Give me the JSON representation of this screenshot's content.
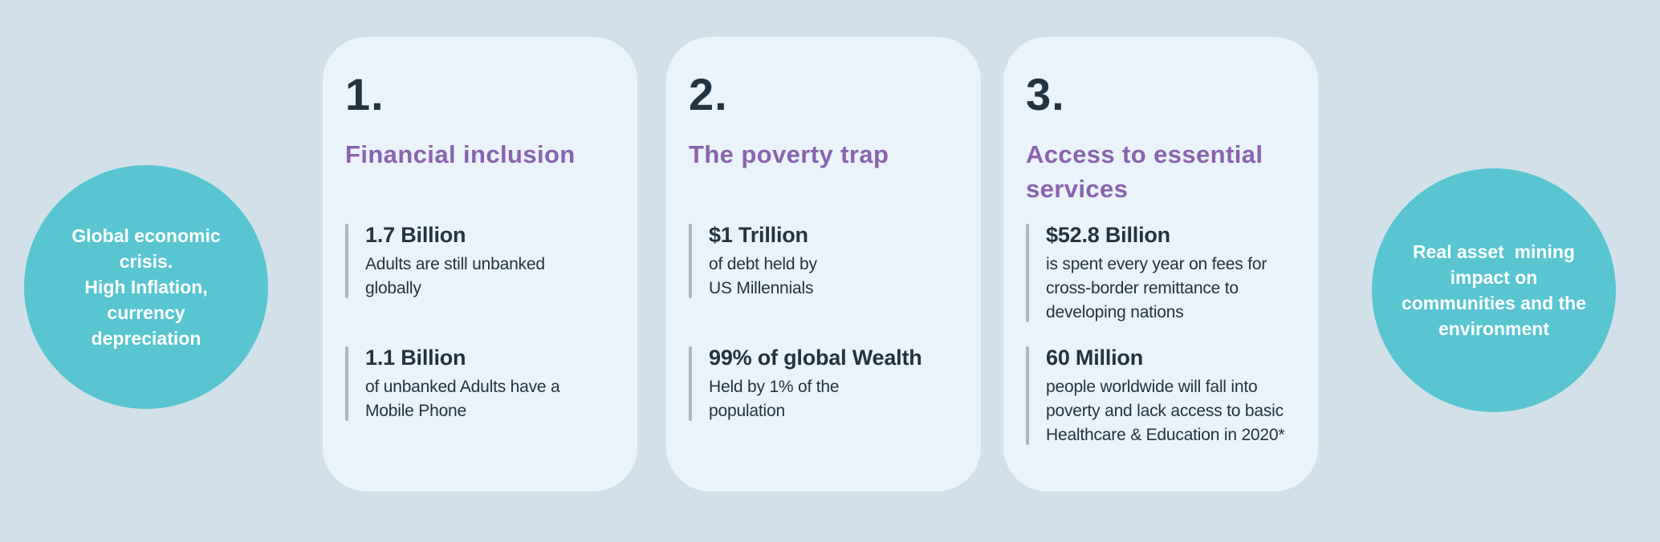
{
  "left_circle": {
    "text": "Global economic\ncrisis.\nHigh Inflation,\ncurrency\ndepreciation"
  },
  "right_circle": {
    "text": "Real asset  mining\nimpact on\ncommunities and the\nenvironment"
  },
  "cards": [
    {
      "number": "1.",
      "title": "Financial inclusion",
      "stats": [
        {
          "value": "1.7 Billion",
          "description": "Adults are still unbanked\nglobally"
        },
        {
          "value": "1.1 Billion",
          "description": "of unbanked Adults have a\nMobile Phone"
        }
      ]
    },
    {
      "number": "2.",
      "title": "The poverty trap",
      "stats": [
        {
          "value": "$1 Trillion",
          "description": "of debt held by\nUS Millennials"
        },
        {
          "value": "99% of global Wealth",
          "description": "Held by 1% of the\npopulation"
        }
      ]
    },
    {
      "number": "3.",
      "title": "Access to essential\nservices",
      "stats": [
        {
          "value": "$52.8 Billion",
          "description": "is spent every year on fees for\ncross-border remittance to\ndeveloping nations"
        },
        {
          "value": "60 Million",
          "description": "people worldwide will fall into\npoverty and lack access to basic\nHealthcare & Education in 2020*"
        }
      ]
    }
  ],
  "colors": {
    "background": "#d2e0ea",
    "card": "#e9f3f9",
    "circle": "#58c5d1",
    "heading": "#8a63ad",
    "text_dark": "#243340",
    "stat_bar": "#aeb6bc",
    "circle_text": "#ffffff"
  }
}
